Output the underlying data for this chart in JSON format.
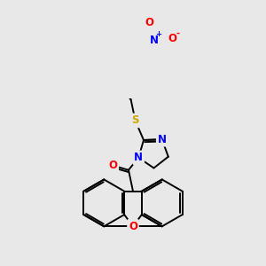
{
  "background_color": "#e8e8e8",
  "bond_color": "#000000",
  "atom_colors": {
    "N": "#0000ff",
    "O": "#ff0000",
    "S": "#ccaa00",
    "C": "#000000"
  },
  "figsize": [
    3.0,
    3.0
  ],
  "dpi": 100
}
